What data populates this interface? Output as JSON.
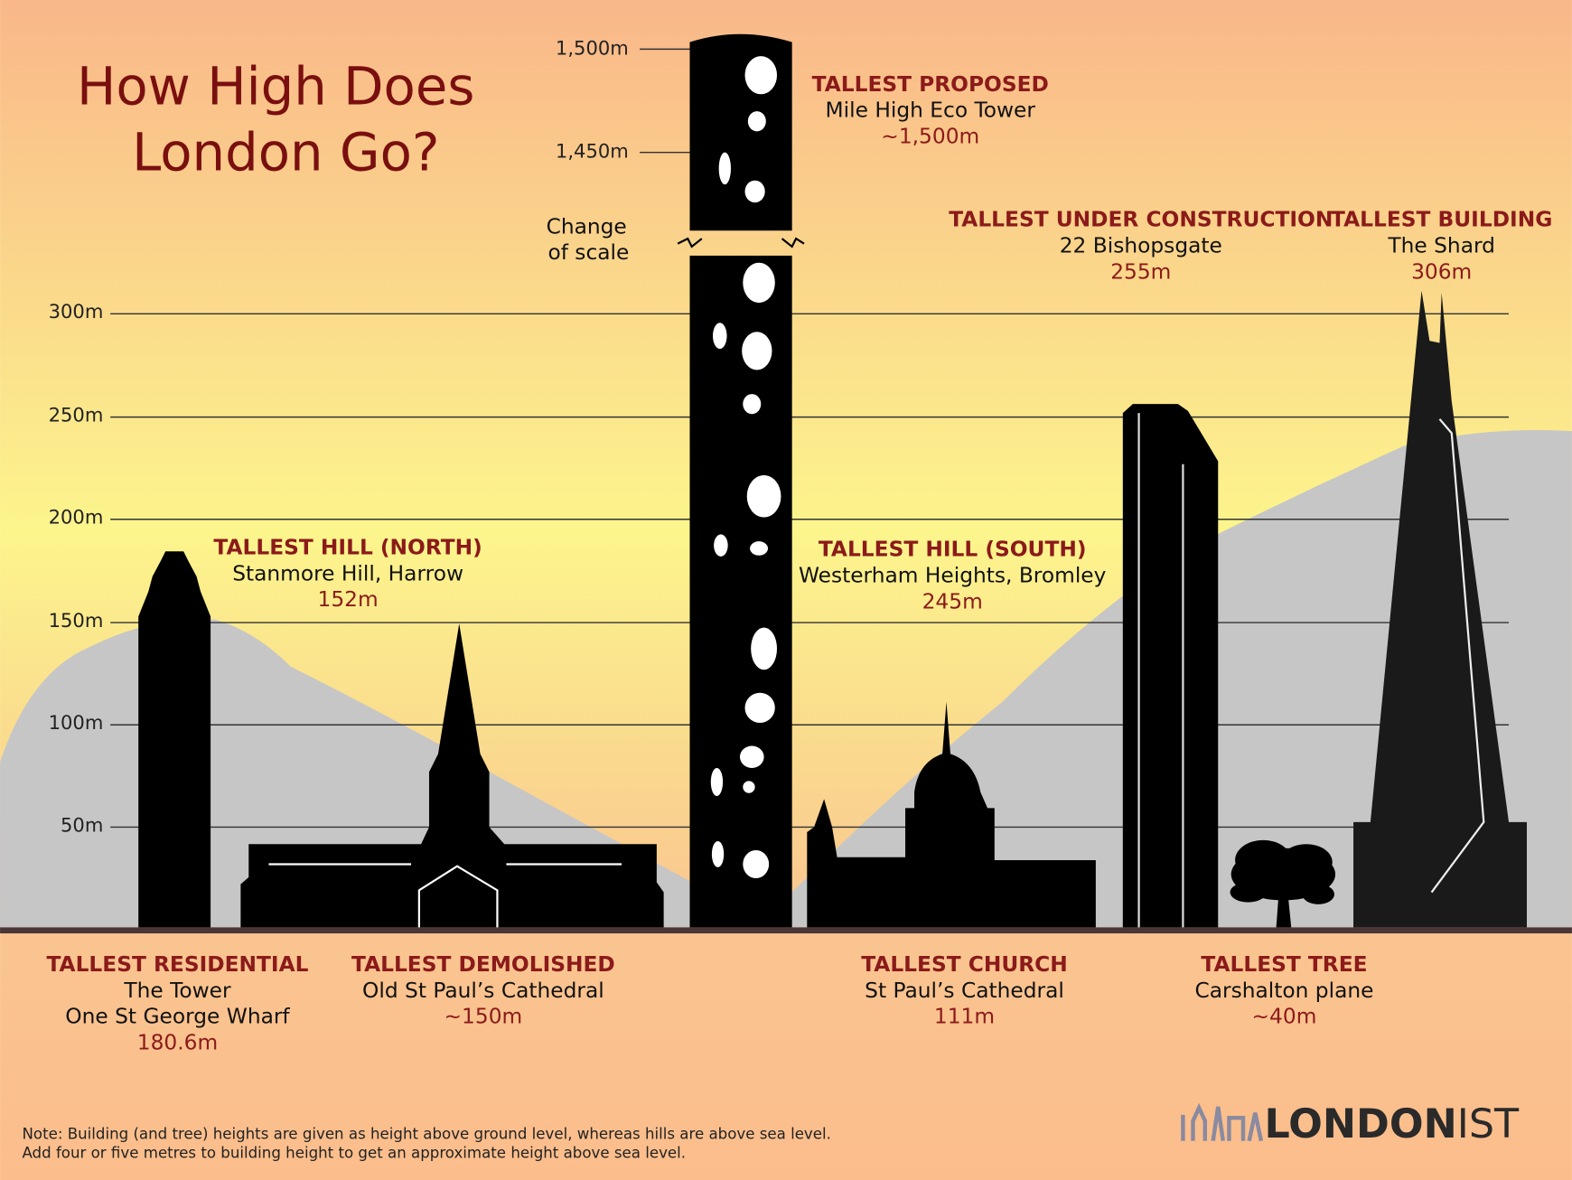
{
  "title": [
    "How High Does",
    "London Go?"
  ],
  "scale_ticks": [
    "1,500m",
    "1,450m"
  ],
  "main_ticks": [
    "300m",
    "250m",
    "200m",
    "150m",
    "100m",
    "50m"
  ],
  "scale_note": [
    "Change",
    "of scale"
  ],
  "labels": [
    {
      "heading": "TALLEST PROPOSED",
      "lines": [
        "Mile High Eco Tower"
      ],
      "height": "~1,500m"
    },
    {
      "heading": "TALLEST UNDER CONSTRUCTION",
      "lines": [
        "22 Bishopsgate"
      ],
      "height": "255m"
    },
    {
      "heading": "TALLEST BUILDING",
      "lines": [
        "The Shard"
      ],
      "height": "306m"
    },
    {
      "heading": "TALLEST HILL (NORTH)",
      "lines": [
        "Stanmore Hill, Harrow"
      ],
      "height": "152m"
    },
    {
      "heading": "TALLEST HILL (SOUTH)",
      "lines": [
        "Westerham Heights, Bromley"
      ],
      "height": "245m"
    },
    {
      "heading": "TALLEST RESIDENTIAL",
      "lines": [
        "The Tower",
        "One St George Wharf"
      ],
      "height": "180.6m"
    },
    {
      "heading": "TALLEST DEMOLISHED",
      "lines": [
        "Old St Paul’s Cathedral"
      ],
      "height": "~150m"
    },
    {
      "heading": "TALLEST CHURCH",
      "lines": [
        "St Paul’s Cathedral"
      ],
      "height": "111m"
    },
    {
      "heading": "TALLEST TREE",
      "lines": [
        "Carshalton plane"
      ],
      "height": "~40m"
    }
  ],
  "note": [
    "Note: Building (and tree) heights are given as height above ground level, whereas hills are above sea level.",
    "Add four or five metres to building height to get an approximate height above sea level."
  ],
  "logo": {
    "bold": "LONDON",
    "light": "IST"
  }
}
